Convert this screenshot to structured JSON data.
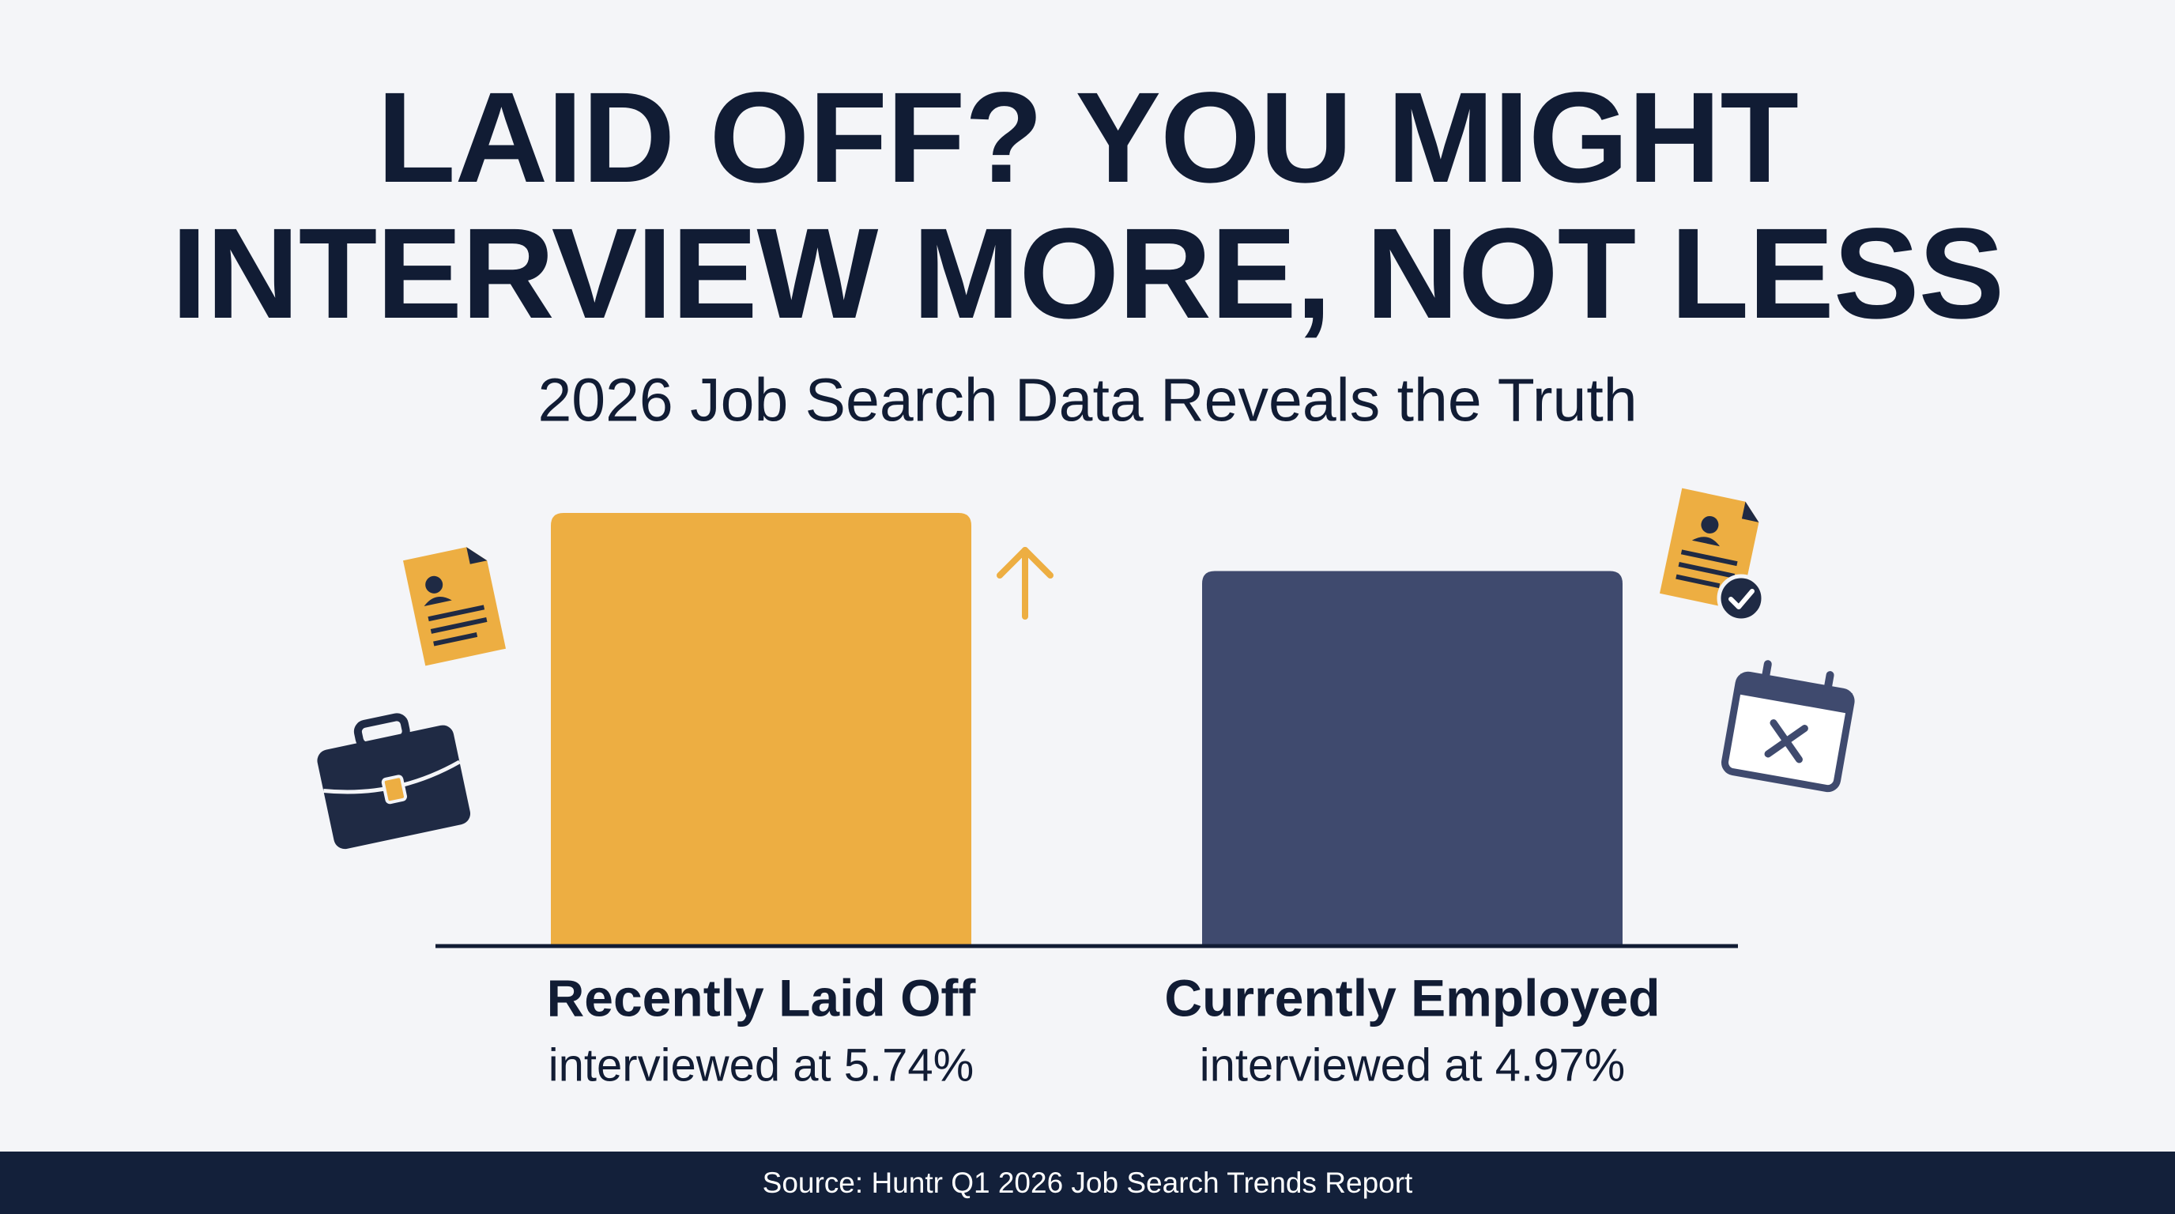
{
  "chart_data": {
    "type": "bar",
    "title": "LAID OFF? YOU MIGHT\nINTERVIEW MORE, NOT LESS",
    "subtitle": "2026 Job Search Data Reveals the Truth",
    "categories": [
      "Recently Laid Off",
      "Currently Employed"
    ],
    "values": [
      5.74,
      4.97
    ],
    "value_labels": [
      "interviewed at 5.74%",
      "interviewed at 4.97%"
    ],
    "colors": [
      "#edae42",
      "#3f4a6e"
    ],
    "source": "Source: Huntr Q1 2026 Job Search Trends Report"
  }
}
